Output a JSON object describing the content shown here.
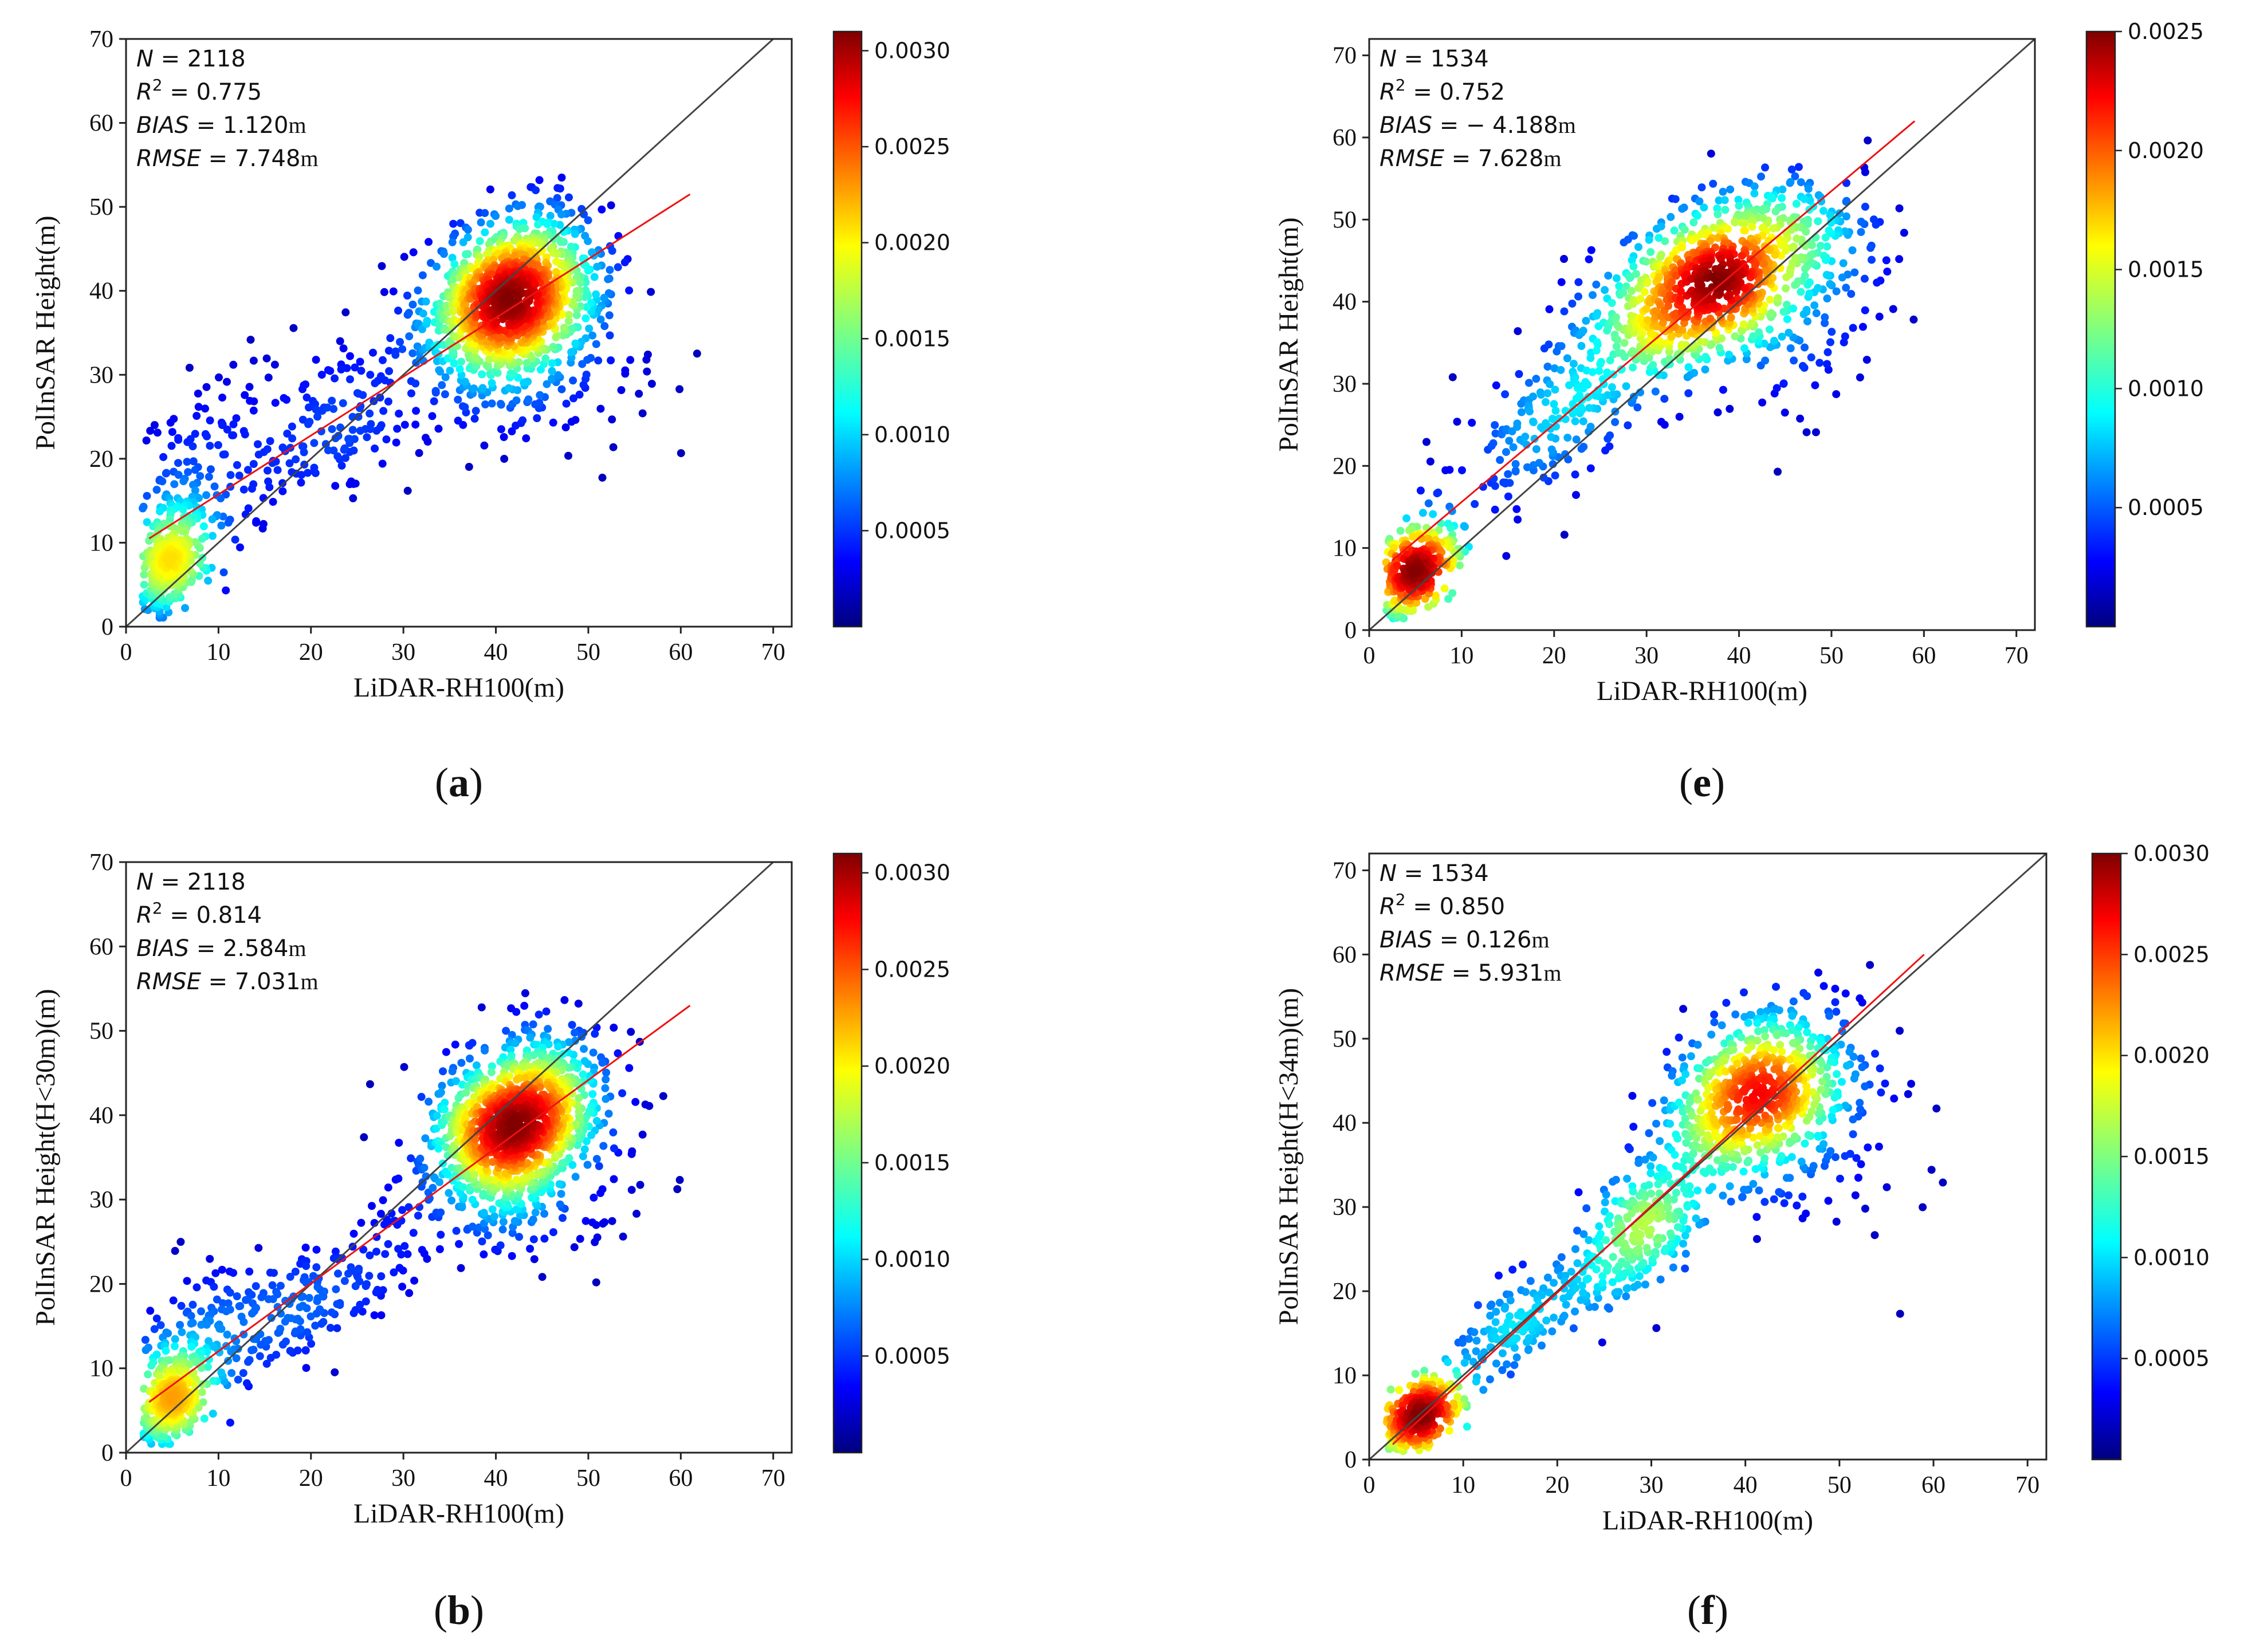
{
  "chart_data": [
    {
      "id": "a",
      "type": "scatter",
      "caption": "a",
      "xlabel": "LiDAR-RH100(m)",
      "ylabel": "PolInSAR Height(m)",
      "xlim": [
        0,
        72
      ],
      "ylim": [
        0,
        70
      ],
      "xticks": [
        0,
        10,
        20,
        30,
        40,
        50,
        60,
        70
      ],
      "yticks": [
        0,
        10,
        20,
        30,
        40,
        50,
        60,
        70
      ],
      "stats": {
        "N": "2118",
        "R2": "0.775",
        "BIAS": "1.120",
        "RMSE": "7.748",
        "unit": "m",
        "bias_sign": ""
      },
      "fit_line": {
        "x": [
          2.5,
          61
        ],
        "y": [
          10.5,
          51.5
        ]
      },
      "identity_line": true,
      "colorbar": {
        "min": 0,
        "max": 0.0031,
        "ticks": [
          "0.0005",
          "0.0010",
          "0.0015",
          "0.0020",
          "0.0025",
          "0.0030"
        ],
        "tick_values": [
          0.0005,
          0.001,
          0.0015,
          0.002,
          0.0025,
          0.003
        ],
        "colormap": "jet"
      },
      "clusters": [
        {
          "cx": 42,
          "cy": 39,
          "sx": 4.8,
          "sy": 5.2,
          "rho": 0.25,
          "n": 1150
        },
        {
          "cx": 4.5,
          "cy": 8,
          "sx": 1.8,
          "sy": 3.5,
          "rho": 0.3,
          "n": 320
        },
        {
          "cx": 8,
          "cy": 18,
          "sx": 4,
          "sy": 6,
          "rho": 0.3,
          "n": 140
        },
        {
          "cx": 22,
          "cy": 24,
          "sx": 6,
          "sy": 6,
          "rho": 0.6,
          "n": 170
        },
        {
          "cx": 45,
          "cy": 30,
          "sx": 6,
          "sy": 5,
          "rho": 0.1,
          "n": 90
        }
      ]
    },
    {
      "id": "e",
      "type": "scatter",
      "caption": "e",
      "xlabel": "LiDAR-RH100(m)",
      "ylabel": "PolInSAR Height(m)",
      "xlim": [
        0,
        72
      ],
      "ylim": [
        0,
        72
      ],
      "xticks": [
        0,
        10,
        20,
        30,
        40,
        50,
        60,
        70
      ],
      "yticks": [
        0,
        10,
        20,
        30,
        40,
        50,
        60,
        70
      ],
      "stats": {
        "N": "1534",
        "R2": "0.752",
        "BIAS": "4.188",
        "RMSE": "7.628",
        "unit": "m",
        "bias_sign": "−"
      },
      "fit_line": {
        "x": [
          2.5,
          59
        ],
        "y": [
          8.5,
          62
        ]
      },
      "identity_line": true,
      "colorbar": {
        "min": 0,
        "max": 0.0025,
        "ticks": [
          "0.0005",
          "0.0010",
          "0.0015",
          "0.0020",
          "0.0025"
        ],
        "tick_values": [
          0.0005,
          0.001,
          0.0015,
          0.002,
          0.0025
        ],
        "colormap": "jet"
      },
      "clusters": [
        {
          "cx": 5,
          "cy": 7,
          "sx": 2.2,
          "sy": 3.2,
          "rho": 0.5,
          "n": 330
        },
        {
          "cx": 37,
          "cy": 42,
          "sx": 7,
          "sy": 6,
          "rho": 0.55,
          "n": 900
        },
        {
          "cx": 20,
          "cy": 26,
          "sx": 6,
          "sy": 7,
          "rho": 0.7,
          "n": 200
        },
        {
          "cx": 48,
          "cy": 40,
          "sx": 5,
          "sy": 8,
          "rho": 0.2,
          "n": 100
        }
      ]
    },
    {
      "id": "b",
      "type": "scatter",
      "caption": "b",
      "xlabel": "LiDAR-RH100(m)",
      "ylabel": "PolInSAR Height(H<30m)(m)",
      "xlim": [
        0,
        72
      ],
      "ylim": [
        0,
        70
      ],
      "xticks": [
        0,
        10,
        20,
        30,
        40,
        50,
        60,
        70
      ],
      "yticks": [
        0,
        10,
        20,
        30,
        40,
        50,
        60,
        70
      ],
      "stats": {
        "N": "2118",
        "R2": "0.814",
        "BIAS": "2.584",
        "RMSE": "7.031",
        "unit": "m",
        "bias_sign": ""
      },
      "fit_line": {
        "x": [
          2.5,
          61
        ],
        "y": [
          6,
          53
        ]
      },
      "identity_line": true,
      "colorbar": {
        "min": 0,
        "max": 0.0031,
        "ticks": [
          "0.0005",
          "0.0010",
          "0.0015",
          "0.0020",
          "0.0025",
          "0.0030"
        ],
        "tick_values": [
          0.0005,
          0.001,
          0.0015,
          0.002,
          0.0025,
          0.003
        ],
        "colormap": "jet"
      },
      "clusters": [
        {
          "cx": 42,
          "cy": 39,
          "sx": 4.8,
          "sy": 5.2,
          "rho": 0.25,
          "n": 1150
        },
        {
          "cx": 4.5,
          "cy": 5.5,
          "sx": 1.8,
          "sy": 2.8,
          "rho": 0.4,
          "n": 330
        },
        {
          "cx": 8,
          "cy": 14,
          "sx": 3.5,
          "sy": 4.5,
          "rho": 0.3,
          "n": 140
        },
        {
          "cx": 21,
          "cy": 19,
          "sx": 6,
          "sy": 5,
          "rho": 0.7,
          "n": 200
        },
        {
          "cx": 45,
          "cy": 30,
          "sx": 6,
          "sy": 5,
          "rho": 0.1,
          "n": 90
        }
      ]
    },
    {
      "id": "f",
      "type": "scatter",
      "caption": "f",
      "xlabel": "LiDAR-RH100(m)",
      "ylabel": "PolInSAR Height(H<34m)(m)",
      "xlim": [
        0,
        72
      ],
      "ylim": [
        0,
        72
      ],
      "xticks": [
        0,
        10,
        20,
        30,
        40,
        50,
        60,
        70
      ],
      "yticks": [
        0,
        10,
        20,
        30,
        40,
        50,
        60,
        70
      ],
      "stats": {
        "N": "1534",
        "R2": "0.850",
        "BIAS": "0.126",
        "RMSE": "5.931",
        "unit": "m",
        "bias_sign": ""
      },
      "fit_line": {
        "x": [
          2.5,
          59
        ],
        "y": [
          1.8,
          60
        ]
      },
      "identity_line": true,
      "colorbar": {
        "min": 0,
        "max": 0.003,
        "ticks": [
          "0.0005",
          "0.0010",
          "0.0015",
          "0.0020",
          "0.0025",
          "0.0030"
        ],
        "tick_values": [
          0.0005,
          0.001,
          0.0015,
          0.002,
          0.0025,
          0.003
        ],
        "colormap": "jet"
      },
      "clusters": [
        {
          "cx": 5,
          "cy": 5,
          "sx": 2.2,
          "sy": 2.5,
          "rho": 0.6,
          "n": 340
        },
        {
          "cx": 29,
          "cy": 27,
          "sx": 3.5,
          "sy": 4.5,
          "rho": 0.5,
          "n": 260
        },
        {
          "cx": 41,
          "cy": 43,
          "sx": 5,
          "sy": 5.5,
          "rho": 0.3,
          "n": 700
        },
        {
          "cx": 16,
          "cy": 16,
          "sx": 5,
          "sy": 4.5,
          "rho": 0.8,
          "n": 160
        },
        {
          "cx": 50,
          "cy": 40,
          "sx": 5,
          "sy": 8,
          "rho": 0.1,
          "n": 80
        }
      ]
    }
  ]
}
